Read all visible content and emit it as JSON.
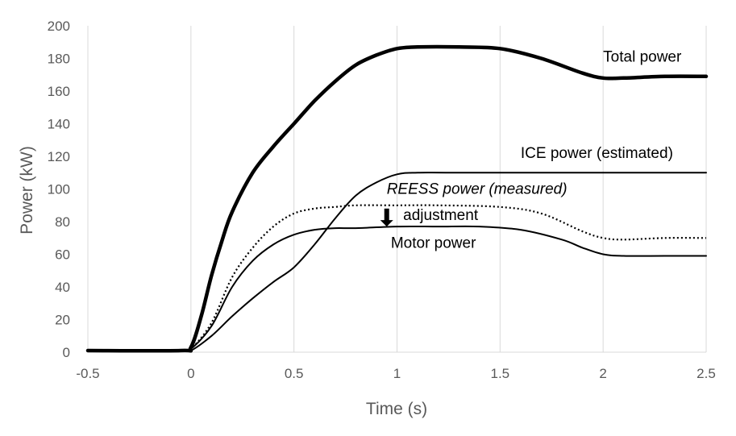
{
  "chart_data": {
    "type": "line",
    "xlabel": "Time (s)",
    "ylabel": "Power (kW)",
    "xlim": [
      -0.5,
      2.5
    ],
    "ylim": [
      0,
      200
    ],
    "xticks": [
      -0.5,
      0,
      0.5,
      1,
      1.5,
      2,
      2.5
    ],
    "xtick_labels": [
      "-0.5",
      "0",
      "0.5",
      "1",
      "1.5",
      "2",
      "2.5"
    ],
    "yticks": [
      0,
      20,
      40,
      60,
      80,
      100,
      120,
      140,
      160,
      180,
      200
    ],
    "grid": {
      "vertical": true,
      "horizontal": false
    },
    "series": [
      {
        "name": "Total power",
        "style": "bold",
        "color": "#000000",
        "x": [
          -0.5,
          -0.05,
          0,
          0.05,
          0.1,
          0.15,
          0.2,
          0.3,
          0.4,
          0.5,
          0.6,
          0.7,
          0.8,
          0.9,
          1.0,
          1.1,
          1.3,
          1.5,
          1.7,
          1.9,
          2.0,
          2.1,
          2.3,
          2.5
        ],
        "y": [
          1,
          1,
          3,
          22,
          47,
          68,
          86,
          110,
          126,
          140,
          154,
          166,
          176,
          182,
          186,
          187,
          187,
          186,
          180,
          171,
          168,
          168,
          169,
          169
        ]
      },
      {
        "name": "ICE power (estimated)",
        "style": "thin",
        "color": "#000000",
        "x": [
          -0.5,
          -0.05,
          0,
          0.1,
          0.2,
          0.3,
          0.4,
          0.5,
          0.6,
          0.7,
          0.8,
          0.9,
          1.0,
          1.1,
          1.3,
          2.0,
          2.5
        ],
        "y": [
          1,
          1,
          1,
          10,
          22,
          33,
          43,
          52,
          66,
          82,
          96,
          104,
          109,
          110,
          110,
          110,
          110
        ]
      },
      {
        "name": "REESS power (measured)",
        "style": "dotted",
        "color": "#000000",
        "x": [
          -0.5,
          -0.05,
          0,
          0.1,
          0.2,
          0.3,
          0.4,
          0.5,
          0.6,
          0.7,
          0.8,
          1.0,
          1.2,
          1.5,
          1.7,
          1.9,
          2.0,
          2.1,
          2.3,
          2.5
        ],
        "y": [
          1,
          1,
          2,
          18,
          46,
          64,
          77,
          85,
          88,
          89,
          90,
          90,
          90,
          89,
          85,
          74,
          70,
          69,
          70,
          70
        ]
      },
      {
        "name": "Motor power",
        "style": "thin",
        "color": "#000000",
        "x": [
          -0.5,
          -0.05,
          0,
          0.1,
          0.2,
          0.3,
          0.4,
          0.5,
          0.6,
          0.7,
          0.8,
          1.0,
          1.2,
          1.4,
          1.6,
          1.8,
          1.9,
          2.0,
          2.1,
          2.3,
          2.5
        ],
        "y": [
          1,
          1,
          2,
          16,
          40,
          56,
          66,
          72,
          75,
          76,
          76,
          77,
          77,
          77,
          75,
          69,
          64,
          60,
          59,
          59,
          59
        ]
      }
    ],
    "annotations": [
      {
        "text": "Total power",
        "x": 2.0,
        "y": 178,
        "italic": false
      },
      {
        "text": "ICE power (estimated)",
        "x": 1.6,
        "y": 119,
        "italic": false
      },
      {
        "text": "REESS power (measured)",
        "x": 0.95,
        "y": 97,
        "italic": true
      },
      {
        "text": "adjustment",
        "x": 1.03,
        "y": 81,
        "italic": false
      },
      {
        "text": "Motor power",
        "x": 0.97,
        "y": 64,
        "italic": false
      }
    ],
    "arrow": {
      "icon": "down-arrow-icon",
      "x": 0.95,
      "y_from": 88,
      "y_to": 77
    }
  }
}
